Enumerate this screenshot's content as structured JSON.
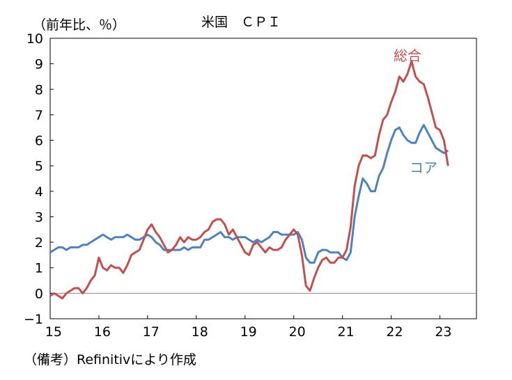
{
  "chart_data": {
    "type": "line",
    "title": "米国　ＣＰＩ",
    "unit_label": "（前年比、％）",
    "note": "（備考）Refinitivにより作成",
    "ylim": [
      -1,
      10
    ],
    "yticks": [
      "−1",
      "0",
      "1",
      "2",
      "3",
      "4",
      "5",
      "6",
      "7",
      "8",
      "9",
      "10"
    ],
    "xlim": [
      2015.0,
      2023.75
    ],
    "xticks": [
      "15",
      "16",
      "17",
      "18",
      "19",
      "20",
      "21",
      "22",
      "23"
    ],
    "grid": false,
    "series": [
      {
        "name": "総合",
        "color": "#C0504D",
        "x": [
          2015.0,
          2015.083,
          2015.167,
          2015.25,
          2015.333,
          2015.417,
          2015.5,
          2015.583,
          2015.667,
          2015.75,
          2015.833,
          2015.917,
          2016.0,
          2016.083,
          2016.167,
          2016.25,
          2016.333,
          2016.417,
          2016.5,
          2016.583,
          2016.667,
          2016.75,
          2016.833,
          2016.917,
          2017.0,
          2017.083,
          2017.167,
          2017.25,
          2017.333,
          2017.417,
          2017.5,
          2017.583,
          2017.667,
          2017.75,
          2017.833,
          2017.917,
          2018.0,
          2018.083,
          2018.167,
          2018.25,
          2018.333,
          2018.417,
          2018.5,
          2018.583,
          2018.667,
          2018.75,
          2018.833,
          2018.917,
          2019.0,
          2019.083,
          2019.167,
          2019.25,
          2019.333,
          2019.417,
          2019.5,
          2019.583,
          2019.667,
          2019.75,
          2019.833,
          2019.917,
          2020.0,
          2020.083,
          2020.167,
          2020.25,
          2020.333,
          2020.417,
          2020.5,
          2020.583,
          2020.667,
          2020.75,
          2020.833,
          2020.917,
          2021.0,
          2021.083,
          2021.167,
          2021.25,
          2021.333,
          2021.417,
          2021.5,
          2021.583,
          2021.667,
          2021.75,
          2021.833,
          2021.917,
          2022.0,
          2022.083,
          2022.167,
          2022.25,
          2022.333,
          2022.417,
          2022.5,
          2022.583,
          2022.667,
          2022.75,
          2022.833,
          2022.917,
          2023.0,
          2023.083,
          2023.167
        ],
        "values": [
          -0.1,
          0.0,
          -0.1,
          -0.2,
          0.0,
          0.1,
          0.2,
          0.2,
          0.0,
          0.2,
          0.5,
          0.7,
          1.4,
          1.0,
          0.9,
          1.1,
          1.0,
          1.0,
          0.8,
          1.1,
          1.5,
          1.6,
          1.7,
          2.1,
          2.5,
          2.7,
          2.4,
          2.2,
          1.9,
          1.6,
          1.7,
          1.9,
          2.2,
          2.0,
          2.2,
          2.1,
          2.1,
          2.2,
          2.4,
          2.5,
          2.8,
          2.9,
          2.9,
          2.7,
          2.3,
          2.5,
          2.2,
          1.9,
          1.6,
          1.5,
          1.9,
          2.0,
          1.8,
          1.6,
          1.8,
          1.7,
          1.7,
          1.8,
          2.1,
          2.3,
          2.5,
          2.3,
          1.5,
          0.3,
          0.1,
          0.6,
          1.0,
          1.3,
          1.4,
          1.2,
          1.2,
          1.4,
          1.4,
          1.7,
          2.6,
          4.2,
          5.0,
          5.4,
          5.4,
          5.3,
          5.4,
          6.2,
          6.8,
          7.0,
          7.5,
          7.9,
          8.5,
          8.3,
          8.6,
          9.1,
          8.5,
          8.3,
          8.2,
          7.7,
          7.1,
          6.5,
          6.4,
          6.0,
          5.0
        ]
      },
      {
        "name": "コア",
        "color": "#4F81BD",
        "x": [
          2015.0,
          2015.083,
          2015.167,
          2015.25,
          2015.333,
          2015.417,
          2015.5,
          2015.583,
          2015.667,
          2015.75,
          2015.833,
          2015.917,
          2016.0,
          2016.083,
          2016.167,
          2016.25,
          2016.333,
          2016.417,
          2016.5,
          2016.583,
          2016.667,
          2016.75,
          2016.833,
          2016.917,
          2017.0,
          2017.083,
          2017.167,
          2017.25,
          2017.333,
          2017.417,
          2017.5,
          2017.583,
          2017.667,
          2017.75,
          2017.833,
          2017.917,
          2018.0,
          2018.083,
          2018.167,
          2018.25,
          2018.333,
          2018.417,
          2018.5,
          2018.583,
          2018.667,
          2018.75,
          2018.833,
          2018.917,
          2019.0,
          2019.083,
          2019.167,
          2019.25,
          2019.333,
          2019.417,
          2019.5,
          2019.583,
          2019.667,
          2019.75,
          2019.833,
          2019.917,
          2020.0,
          2020.083,
          2020.167,
          2020.25,
          2020.333,
          2020.417,
          2020.5,
          2020.583,
          2020.667,
          2020.75,
          2020.833,
          2020.917,
          2021.0,
          2021.083,
          2021.167,
          2021.25,
          2021.333,
          2021.417,
          2021.5,
          2021.583,
          2021.667,
          2021.75,
          2021.833,
          2021.917,
          2022.0,
          2022.083,
          2022.167,
          2022.25,
          2022.333,
          2022.417,
          2022.5,
          2022.583,
          2022.667,
          2022.75,
          2022.833,
          2022.917,
          2023.0,
          2023.083,
          2023.167
        ],
        "values": [
          1.6,
          1.7,
          1.8,
          1.8,
          1.7,
          1.8,
          1.8,
          1.8,
          1.9,
          1.9,
          2.0,
          2.1,
          2.2,
          2.3,
          2.2,
          2.1,
          2.2,
          2.2,
          2.2,
          2.3,
          2.2,
          2.1,
          2.1,
          2.2,
          2.3,
          2.2,
          2.0,
          1.9,
          1.7,
          1.7,
          1.7,
          1.7,
          1.7,
          1.8,
          1.7,
          1.8,
          1.8,
          1.8,
          2.1,
          2.1,
          2.2,
          2.3,
          2.4,
          2.2,
          2.2,
          2.1,
          2.2,
          2.2,
          2.2,
          2.1,
          2.0,
          2.1,
          2.0,
          2.1,
          2.2,
          2.4,
          2.4,
          2.3,
          2.3,
          2.3,
          2.3,
          2.4,
          2.1,
          1.4,
          1.2,
          1.2,
          1.6,
          1.7,
          1.7,
          1.6,
          1.6,
          1.6,
          1.4,
          1.3,
          1.6,
          3.0,
          3.8,
          4.5,
          4.3,
          4.0,
          4.0,
          4.6,
          4.9,
          5.5,
          6.0,
          6.4,
          6.5,
          6.2,
          6.0,
          5.9,
          5.9,
          6.3,
          6.6,
          6.3,
          6.0,
          5.7,
          5.6,
          5.5,
          5.6
        ]
      }
    ]
  }
}
